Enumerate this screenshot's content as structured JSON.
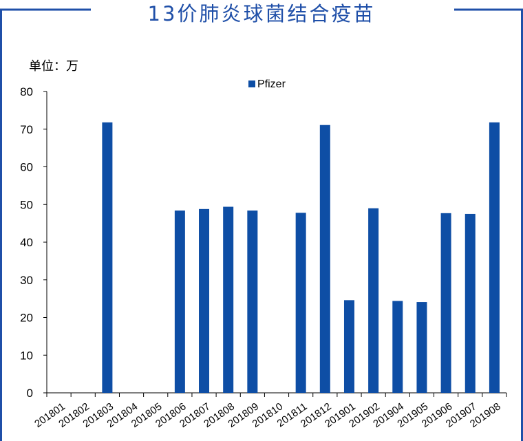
{
  "title": "13价肺炎球菌结合疫苗",
  "unit_label": "单位：万",
  "colors": {
    "frame": "#1f4fa8",
    "title": "#1f4fa8",
    "bar": "#0e4ea5",
    "axis": "#000000"
  },
  "chart_data": {
    "type": "bar",
    "title": "13价肺炎球菌结合疫苗",
    "xlabel": "",
    "ylabel": "单位：万",
    "ylim": [
      0,
      80
    ],
    "yticks": [
      0,
      10,
      20,
      30,
      40,
      50,
      60,
      70,
      80
    ],
    "grid": false,
    "legend_position": "top",
    "categories": [
      "201801",
      "201802",
      "201803",
      "201804",
      "201805",
      "201806",
      "201807",
      "201808",
      "201809",
      "201810",
      "201811",
      "201812",
      "201901",
      "201902",
      "201904",
      "201905",
      "201906",
      "201907",
      "201908"
    ],
    "series": [
      {
        "name": "Pfizer",
        "values": [
          0,
          0,
          71.8,
          0,
          0,
          48.4,
          48.8,
          49.4,
          48.4,
          0,
          47.8,
          71.1,
          24.6,
          49.0,
          24.4,
          24.1,
          47.7,
          47.5,
          71.8
        ]
      }
    ]
  }
}
